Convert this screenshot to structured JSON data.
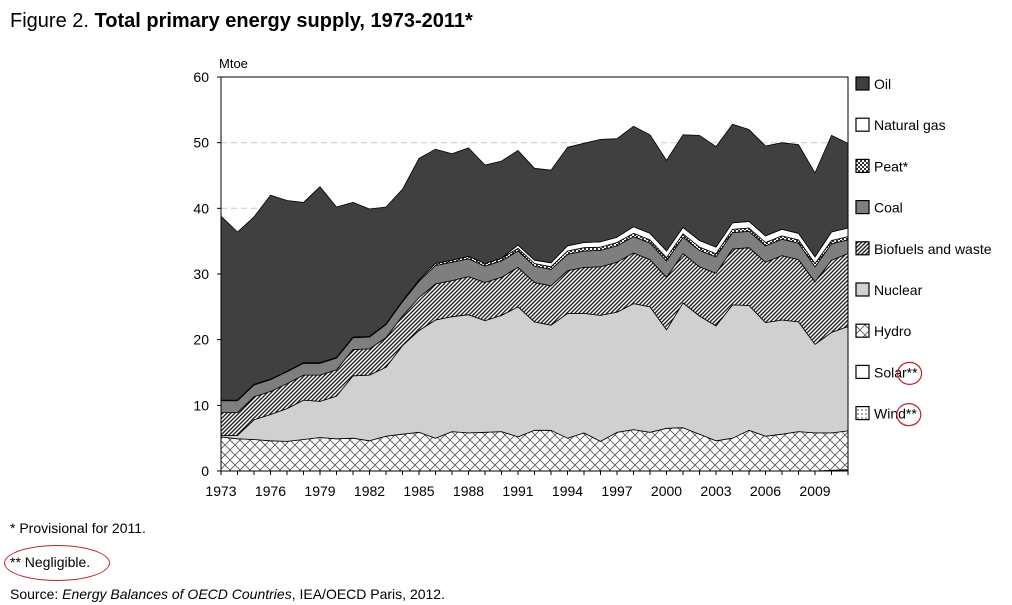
{
  "figure": {
    "label": "Figure 2.",
    "title": "Total primary energy supply, 1973-2011*"
  },
  "footnotes": {
    "provisional": "* Provisional for 2011.",
    "negligible": "** Negligible.",
    "source_prefix": "Source: ",
    "source_title": "Energy Balances of OECD Countries",
    "source_suffix": ", IEA/OECD Paris, 2012."
  },
  "colors": {
    "oil": "#404040",
    "natural_gas": "#ffffff",
    "peat": "#ffffff",
    "coal": "#7f7f7f",
    "biofuels": "#ffffff",
    "nuclear": "#d0d0d0",
    "hydro": "#ffffff",
    "annotation": "#c0202a"
  },
  "chart_data": {
    "type": "area",
    "stacked": true,
    "ylabel": "Mtoe",
    "xlabel": "",
    "ylim": [
      0,
      60
    ],
    "yticks": [
      0,
      10,
      20,
      30,
      40,
      50,
      60
    ],
    "xticks": [
      1973,
      1976,
      1979,
      1982,
      1985,
      1988,
      1991,
      1994,
      1997,
      2000,
      2003,
      2006,
      2009
    ],
    "grid": "horizontal dashed",
    "legend": "right",
    "x": [
      1973,
      1974,
      1975,
      1976,
      1977,
      1978,
      1979,
      1980,
      1981,
      1982,
      1983,
      1984,
      1985,
      1986,
      1987,
      1988,
      1989,
      1990,
      1991,
      1992,
      1993,
      1994,
      1995,
      1996,
      1997,
      1998,
      1999,
      2000,
      2001,
      2002,
      2003,
      2004,
      2005,
      2006,
      2007,
      2008,
      2009,
      2010,
      2011
    ],
    "series": [
      {
        "name": "Wind**",
        "pattern": "dots",
        "values": [
          0,
          0,
          0,
          0,
          0,
          0,
          0,
          0,
          0,
          0,
          0,
          0,
          0,
          0,
          0,
          0,
          0,
          0,
          0,
          0,
          0,
          0,
          0,
          0,
          0,
          0,
          0,
          0,
          0,
          0,
          0,
          0,
          0,
          0,
          0,
          0,
          0,
          0.1,
          0.2
        ]
      },
      {
        "name": "Solar**",
        "pattern": "none",
        "values": [
          0,
          0,
          0,
          0,
          0,
          0,
          0,
          0,
          0,
          0,
          0,
          0,
          0,
          0,
          0,
          0,
          0,
          0,
          0,
          0,
          0,
          0,
          0,
          0,
          0,
          0,
          0,
          0,
          0,
          0,
          0,
          0,
          0,
          0,
          0,
          0,
          0,
          0,
          0
        ]
      },
      {
        "name": "Hydro",
        "pattern": "cross",
        "values": [
          5.2,
          4.9,
          4.8,
          4.6,
          4.5,
          4.8,
          5.1,
          4.9,
          5.0,
          4.6,
          5.3,
          5.6,
          5.9,
          5.0,
          6.0,
          5.8,
          5.9,
          6.0,
          5.2,
          6.2,
          6.2,
          5.0,
          5.8,
          4.5,
          5.9,
          6.3,
          5.9,
          6.5,
          6.6,
          5.6,
          4.6,
          5.0,
          6.2,
          5.3,
          5.6,
          6.0,
          5.8,
          5.7,
          5.9
        ]
      },
      {
        "name": "Nuclear",
        "pattern": "solid",
        "values": [
          0.2,
          0.5,
          3.0,
          4.0,
          5.0,
          6.0,
          5.5,
          6.5,
          9.5,
          10.0,
          10.5,
          13.5,
          15.5,
          18.0,
          17.5,
          18.0,
          17.0,
          17.7,
          19.8,
          16.5,
          16.0,
          19.0,
          18.2,
          19.2,
          18.3,
          19.2,
          19.1,
          15.0,
          19.0,
          18.0,
          17.5,
          20.3,
          19.0,
          17.3,
          17.4,
          16.7,
          13.5,
          15.3,
          15.9
        ]
      },
      {
        "name": "Biofuels and waste",
        "pattern": "hatch",
        "values": [
          3.5,
          3.5,
          3.5,
          3.5,
          3.8,
          3.8,
          4.0,
          4.0,
          4.0,
          4.0,
          4.5,
          4.5,
          5.0,
          5.5,
          5.5,
          5.8,
          5.8,
          5.8,
          6.0,
          6.0,
          6.0,
          6.5,
          7.0,
          7.4,
          7.6,
          7.7,
          7.2,
          8.0,
          7.5,
          7.5,
          8.0,
          8.5,
          8.8,
          9.2,
          9.8,
          9.5,
          9.5,
          11.0,
          11.1
        ]
      },
      {
        "name": "Coal",
        "pattern": "solid",
        "values": [
          1.8,
          1.8,
          1.8,
          1.8,
          1.8,
          1.8,
          1.8,
          1.8,
          1.8,
          1.8,
          2.0,
          2.2,
          2.5,
          2.8,
          2.8,
          2.7,
          2.5,
          2.5,
          2.5,
          2.5,
          2.5,
          2.5,
          2.5,
          2.5,
          2.5,
          2.5,
          2.5,
          2.5,
          2.5,
          2.5,
          2.5,
          2.5,
          2.5,
          2.5,
          2.5,
          2.5,
          2.3,
          2.5,
          2.1
        ]
      },
      {
        "name": "Peat*",
        "pattern": "checker",
        "values": [
          0.1,
          0.1,
          0.1,
          0.1,
          0.1,
          0.1,
          0.1,
          0.1,
          0.1,
          0.1,
          0.1,
          0.1,
          0.2,
          0.3,
          0.3,
          0.4,
          0.4,
          0.4,
          0.4,
          0.4,
          0.4,
          0.5,
          0.5,
          0.5,
          0.5,
          0.5,
          0.5,
          0.5,
          0.5,
          0.5,
          0.5,
          0.5,
          0.5,
          0.5,
          0.5,
          0.5,
          0.5,
          0.5,
          0.5
        ]
      },
      {
        "name": "Natural gas",
        "pattern": "solid",
        "values": [
          0,
          0,
          0,
          0,
          0,
          0,
          0,
          0,
          0,
          0,
          0,
          0,
          0,
          0,
          0,
          0,
          0,
          0,
          0.5,
          0.5,
          0.6,
          0.8,
          0.8,
          0.8,
          0.8,
          1.0,
          1.0,
          1.0,
          1.0,
          1.0,
          1.0,
          1.0,
          1.0,
          1.0,
          1.0,
          1.0,
          1.0,
          1.3,
          1.3
        ]
      },
      {
        "name": "Oil",
        "pattern": "solid",
        "values": [
          28.0,
          25.6,
          25.5,
          28.0,
          26.0,
          24.4,
          26.8,
          22.9,
          20.5,
          19.4,
          17.8,
          17.0,
          18.5,
          17.4,
          16.2,
          16.5,
          15.0,
          14.8,
          14.4,
          14.0,
          14.1,
          15.0,
          15.1,
          15.6,
          15.0,
          15.3,
          15.0,
          13.8,
          14.1,
          16.0,
          15.3,
          15.0,
          14.0,
          13.7,
          13.2,
          13.5,
          12.8,
          14.7,
          12.9
        ]
      }
    ]
  }
}
